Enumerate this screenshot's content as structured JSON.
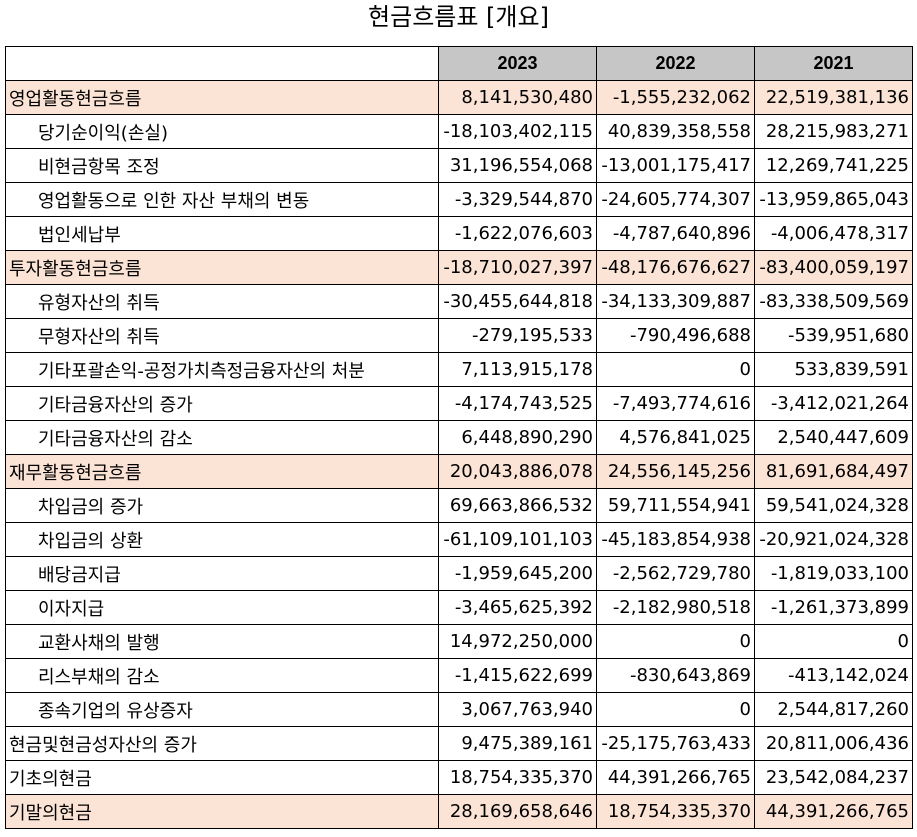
{
  "title": "현금흐름표 [개요]",
  "columns": [
    "2023",
    "2022",
    "2021"
  ],
  "rows": [
    {
      "label": "영업활동현금흐름",
      "type": "section",
      "values": [
        "8,141,530,480",
        "-1,555,232,062",
        "22,519,381,136"
      ]
    },
    {
      "label": "당기순이익(손실)",
      "type": "item",
      "values": [
        "-18,103,402,115",
        "40,839,358,558",
        "28,215,983,271"
      ]
    },
    {
      "label": "비현금항목 조정",
      "type": "item",
      "values": [
        "31,196,554,068",
        "-13,001,175,417",
        "12,269,741,225"
      ]
    },
    {
      "label": "영업활동으로 인한 자산 부채의 변동",
      "type": "item",
      "values": [
        "-3,329,544,870",
        "-24,605,774,307",
        "-13,959,865,043"
      ]
    },
    {
      "label": "법인세납부",
      "type": "item",
      "values": [
        "-1,622,076,603",
        "-4,787,640,896",
        "-4,006,478,317"
      ]
    },
    {
      "label": "투자활동현금흐름",
      "type": "section",
      "values": [
        "-18,710,027,397",
        "-48,176,676,627",
        "-83,400,059,197"
      ]
    },
    {
      "label": "유형자산의 취득",
      "type": "item",
      "values": [
        "-30,455,644,818",
        "-34,133,309,887",
        "-83,338,509,569"
      ]
    },
    {
      "label": "무형자산의 취득",
      "type": "item",
      "values": [
        "-279,195,533",
        "-790,496,688",
        "-539,951,680"
      ]
    },
    {
      "label": "기타포괄손익-공정가치측정금융자산의 처분",
      "type": "item",
      "values": [
        "7,113,915,178",
        "0",
        "533,839,591"
      ]
    },
    {
      "label": "기타금융자산의 증가",
      "type": "item",
      "values": [
        "-4,174,743,525",
        "-7,493,774,616",
        "-3,412,021,264"
      ]
    },
    {
      "label": "기타금융자산의 감소",
      "type": "item",
      "values": [
        "6,448,890,290",
        "4,576,841,025",
        "2,540,447,609"
      ]
    },
    {
      "label": "재무활동현금흐름",
      "type": "section",
      "values": [
        "20,043,886,078",
        "24,556,145,256",
        "81,691,684,497"
      ]
    },
    {
      "label": "차입금의 증가",
      "type": "item",
      "values": [
        "69,663,866,532",
        "59,711,554,941",
        "59,541,024,328"
      ]
    },
    {
      "label": "차입금의 상환",
      "type": "item",
      "values": [
        "-61,109,101,103",
        "-45,183,854,938",
        "-20,921,024,328"
      ]
    },
    {
      "label": "배당금지급",
      "type": "item",
      "values": [
        "-1,959,645,200",
        "-2,562,729,780",
        "-1,819,033,100"
      ]
    },
    {
      "label": "이자지급",
      "type": "item",
      "values": [
        "-3,465,625,392",
        "-2,182,980,518",
        "-1,261,373,899"
      ]
    },
    {
      "label": "교환사채의 발행",
      "type": "item",
      "values": [
        "14,972,250,000",
        "0",
        "0"
      ]
    },
    {
      "label": "리스부채의 감소",
      "type": "item",
      "values": [
        "-1,415,622,699",
        "-830,643,869",
        "-413,142,024"
      ]
    },
    {
      "label": "종속기업의 유상증자",
      "type": "item",
      "values": [
        "3,067,763,940",
        "0",
        "2,544,817,260"
      ]
    },
    {
      "label": "현금및현금성자산의 증가",
      "type": "total",
      "values": [
        "9,475,389,161",
        "-25,175,763,433",
        "20,811,006,436"
      ]
    },
    {
      "label": "기초의현금",
      "type": "total",
      "values": [
        "18,754,335,370",
        "44,391,266,765",
        "23,542,084,237"
      ]
    },
    {
      "label": "기말의현금",
      "type": "final",
      "values": [
        "28,169,658,646",
        "18,754,335,370",
        "44,391,266,765"
      ]
    }
  ]
}
